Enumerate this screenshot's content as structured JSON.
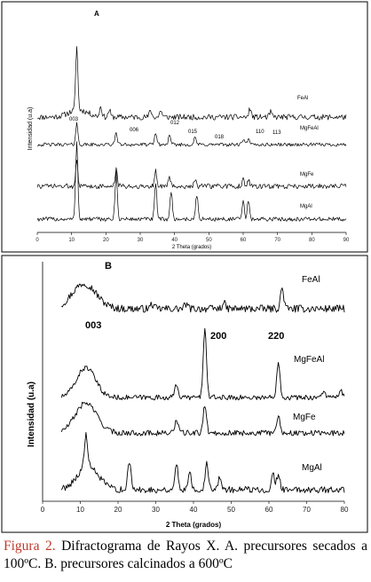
{
  "chart_data": [
    {
      "type": "line",
      "panel": "A",
      "xlabel": "2 Theta (grados)",
      "ylabel": "Intensidad (u.a)",
      "xlim": [
        0,
        90
      ],
      "xticks": [
        0,
        10,
        20,
        30,
        40,
        50,
        60,
        70,
        80,
        90
      ],
      "yticks_shown": false,
      "series": [
        {
          "name": "FeAl",
          "peaks": [
            {
              "x": 11.5,
              "h": 18
            },
            {
              "x": 18.5,
              "h": 3
            },
            {
              "x": 21,
              "h": 2
            },
            {
              "x": 33,
              "h": 2
            },
            {
              "x": 36,
              "h": 2
            },
            {
              "x": 62,
              "h": 2.5
            },
            {
              "x": 68,
              "h": 1.5
            }
          ],
          "hump": {
            "center": 12,
            "width": 4,
            "height": 2
          },
          "noise": 0.8,
          "offset": 7
        },
        {
          "name": "MgFeAl",
          "peaks": [
            {
              "x": 11.5,
              "h": 6
            },
            {
              "x": 23,
              "h": 3.5
            },
            {
              "x": 34.5,
              "h": 3.5
            },
            {
              "x": 38.5,
              "h": 2.5
            },
            {
              "x": 46,
              "h": 2
            },
            {
              "x": 60,
              "h": 1.5
            },
            {
              "x": 61.5,
              "h": 1.5
            }
          ],
          "hump": null,
          "noise": 0.5,
          "offset": 0
        },
        {
          "name": "MgFe",
          "peaks": [
            {
              "x": 11.5,
              "h": 8
            },
            {
              "x": 23,
              "h": 5
            },
            {
              "x": 34.5,
              "h": 4.5
            },
            {
              "x": 38.5,
              "h": 2.5
            },
            {
              "x": 46,
              "h": 2
            },
            {
              "x": 60,
              "h": 1.8
            },
            {
              "x": 61.5,
              "h": 2
            }
          ],
          "hump": null,
          "noise": 0.7,
          "offset": -12
        },
        {
          "name": "MgAl",
          "peaks": [
            {
              "x": 11.5,
              "h": 22
            },
            {
              "x": 23,
              "h": 13
            },
            {
              "x": 34.5,
              "h": 10
            },
            {
              "x": 39,
              "h": 8
            },
            {
              "x": 46.5,
              "h": 7
            },
            {
              "x": 60,
              "h": 5
            },
            {
              "x": 61.5,
              "h": 5
            }
          ],
          "hump": null,
          "noise": 0.6,
          "offset": -30
        }
      ],
      "annotations": [
        "003",
        "006",
        "012",
        "015",
        "018",
        "110",
        "113"
      ],
      "panel_letter": "A"
    },
    {
      "type": "line",
      "panel": "B",
      "xlabel": "2 Theta (grados)",
      "ylabel": "Intensidad (u.a)",
      "xlim": [
        0,
        80
      ],
      "xticks": [
        0,
        10,
        20,
        30,
        40,
        50,
        60,
        70,
        80
      ],
      "yticks_shown": false,
      "series": [
        {
          "name": "FeAl",
          "peaks": [
            {
              "x": 29,
              "h": 2
            },
            {
              "x": 38,
              "h": 2
            },
            {
              "x": 48,
              "h": 2.5
            },
            {
              "x": 63.5,
              "h": 9
            }
          ],
          "hump": {
            "center": 11,
            "width": 4.5,
            "height": 11
          },
          "noise": 1.6,
          "offset": 0
        },
        {
          "name": "MgFeAl",
          "peaks": [
            {
              "x": 35.5,
              "h": 6
            },
            {
              "x": 43,
              "h": 30
            },
            {
              "x": 62.5,
              "h": 16
            },
            {
              "x": 74.5,
              "h": 3
            },
            {
              "x": 79,
              "h": 3
            }
          ],
          "hump": {
            "center": 11.5,
            "width": 3.5,
            "height": 13
          },
          "noise": 1.1,
          "offset": 0
        },
        {
          "name": "MgFe",
          "peaks": [
            {
              "x": 35.5,
              "h": 6
            },
            {
              "x": 43,
              "h": 12
            },
            {
              "x": 62.5,
              "h": 8
            }
          ],
          "hump": {
            "center": 11.5,
            "width": 4,
            "height": 13
          },
          "noise": 1.2,
          "offset": 0
        },
        {
          "name": "MgAl",
          "peaks": [
            {
              "x": 11.5,
              "h": 14
            },
            {
              "x": 23,
              "h": 12
            },
            {
              "x": 35.5,
              "h": 11
            },
            {
              "x": 39,
              "h": 8
            },
            {
              "x": 43.5,
              "h": 12
            },
            {
              "x": 47,
              "h": 6
            },
            {
              "x": 61,
              "h": 7
            },
            {
              "x": 62.5,
              "h": 7
            }
          ],
          "hump": {
            "center": 12,
            "width": 4,
            "height": 10
          },
          "noise": 1.4,
          "offset": 0
        }
      ],
      "annotations": [
        "003",
        "200",
        "220"
      ],
      "panel_letter": "B"
    }
  ],
  "caption": {
    "label": "Figura 2.",
    "text": "Difractograma de Rayos X. A. precursores secados a 100ºC. B. precursores calcinados a 600ºC"
  }
}
